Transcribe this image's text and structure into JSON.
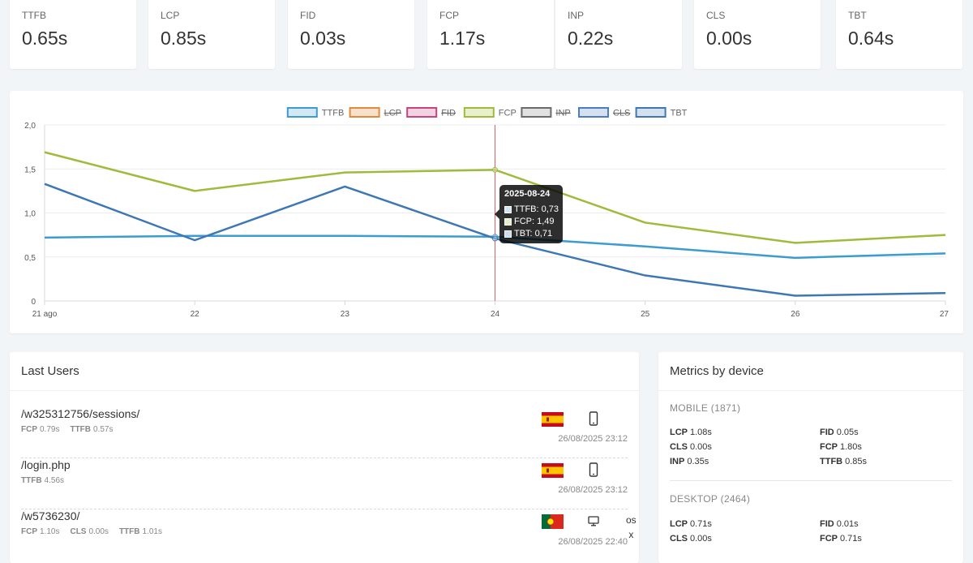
{
  "stats": [
    {
      "label": "TTFB",
      "value": "0.65s"
    },
    {
      "label": "LCP",
      "value": "0.85s"
    },
    {
      "label": "FID",
      "value": "0.03s"
    },
    {
      "label": "FCP",
      "value": "1.17s"
    },
    {
      "label": "INP",
      "value": "0.22s"
    },
    {
      "label": "CLS",
      "value": "0.00s"
    },
    {
      "label": "TBT",
      "value": "0.64s"
    }
  ],
  "chart_data": {
    "type": "line",
    "x": [
      "21 ago",
      "22",
      "23",
      "24",
      "25",
      "26",
      "27"
    ],
    "y_ticks": [
      "0",
      "0,5",
      "1,0",
      "1,5",
      "2,0"
    ],
    "ylim": [
      0,
      2
    ],
    "legend_position": "top",
    "grid": true,
    "legend": [
      {
        "name": "TTFB",
        "hidden": false,
        "color": "#3d9bd1"
      },
      {
        "name": "LCP",
        "hidden": true,
        "color": "#e08a3c"
      },
      {
        "name": "FID",
        "hidden": true,
        "color": "#c8437f"
      },
      {
        "name": "FCP",
        "hidden": false,
        "color": "#9ebb3c"
      },
      {
        "name": "INP",
        "hidden": true,
        "color": "#6b6b6b"
      },
      {
        "name": "CLS",
        "hidden": true,
        "color": "#4a7ec0"
      },
      {
        "name": "TBT",
        "hidden": false,
        "color": "#3e78b3"
      }
    ],
    "series": [
      {
        "name": "TTFB",
        "color": "#3d9bd1",
        "values": [
          0.72,
          0.74,
          0.74,
          0.73,
          0.62,
          0.49,
          0.54
        ]
      },
      {
        "name": "FCP",
        "color": "#9ebb3c",
        "values": [
          1.69,
          1.25,
          1.46,
          1.49,
          0.89,
          0.66,
          0.75
        ]
      },
      {
        "name": "TBT",
        "color": "#3e78b3",
        "values": [
          1.33,
          0.69,
          1.3,
          0.71,
          0.29,
          0.06,
          0.09
        ]
      }
    ],
    "tooltip": {
      "title": "2025-08-24",
      "index": 3,
      "rows": [
        "TTFB: 0,73",
        "FCP: 1,49",
        "TBT: 0,71"
      ]
    }
  },
  "last_users": {
    "title": "Last Users",
    "rows": [
      {
        "path": "/w325312756/sessions/",
        "metrics": [
          {
            "k": "FCP",
            "v": "0.79s"
          },
          {
            "k": "TTFB",
            "v": "0.57s"
          }
        ],
        "flag": "spain-flag",
        "device": "mobile-icon",
        "date": "26/08/2025 23:12"
      },
      {
        "path": "/login.php",
        "metrics": [
          {
            "k": "TTFB",
            "v": "4.56s"
          }
        ],
        "flag": "spain-flag",
        "device": "mobile-icon",
        "date": "26/08/2025 23:12"
      },
      {
        "path": "/w5736230/",
        "metrics": [
          {
            "k": "FCP",
            "v": "1.10s"
          },
          {
            "k": "CLS",
            "v": "0.00s"
          },
          {
            "k": "TTFB",
            "v": "1.01s"
          }
        ],
        "flag": "portugal-flag",
        "device": "desktop-icon",
        "os_line1": "os",
        "os_line2": "x",
        "date": "26/08/2025 22:40"
      }
    ]
  },
  "metrics_by_device": {
    "title": "Metrics by device",
    "mobile": {
      "heading": "MOBILE (1871)",
      "left": [
        {
          "k": "LCP",
          "v": "1.08s"
        },
        {
          "k": "CLS",
          "v": "0.00s"
        },
        {
          "k": "INP",
          "v": "0.35s"
        }
      ],
      "right": [
        {
          "k": "FID",
          "v": "0.05s"
        },
        {
          "k": "FCP",
          "v": "1.80s"
        },
        {
          "k": "TTFB",
          "v": "0.85s"
        }
      ]
    },
    "desktop": {
      "heading": "DESKTOP (2464)",
      "left": [
        {
          "k": "LCP",
          "v": "0.71s"
        },
        {
          "k": "CLS",
          "v": "0.00s"
        }
      ],
      "right": [
        {
          "k": "FID",
          "v": "0.01s"
        },
        {
          "k": "FCP",
          "v": "0.71s"
        }
      ]
    }
  }
}
